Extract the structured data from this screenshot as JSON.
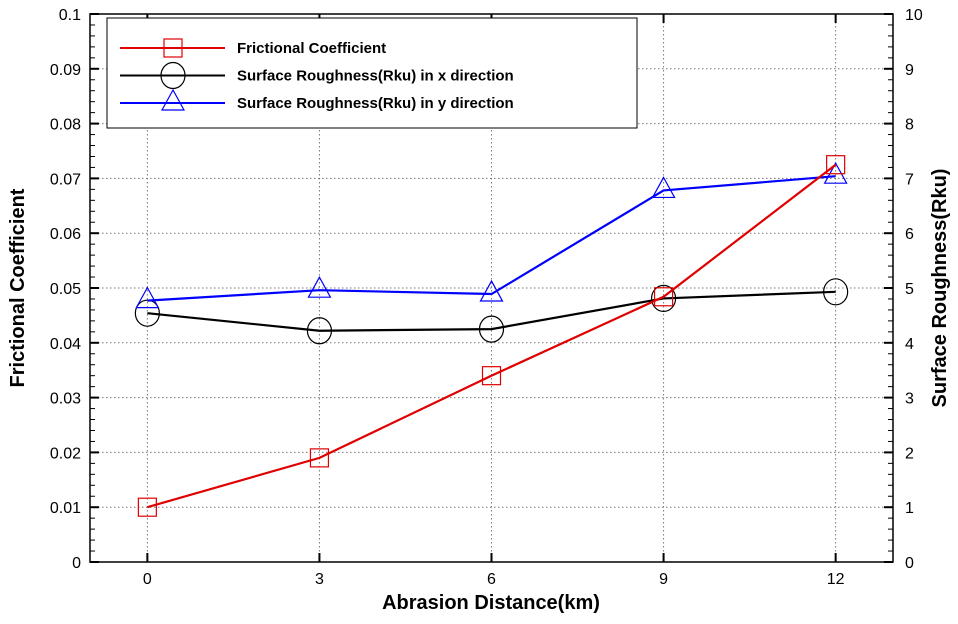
{
  "chart_data": {
    "type": "line",
    "xlabel": "Abrasion Distance(km)",
    "ylabel": "Frictional Coefficient",
    "y2label": "Surface Roughness(Rku)",
    "x": [
      0,
      3,
      6,
      9,
      12
    ],
    "xlim": [
      -1,
      13
    ],
    "ylim": [
      0,
      0.1
    ],
    "y2lim": [
      0,
      10
    ],
    "xticks": [
      "0",
      "3",
      "6",
      "9",
      "12"
    ],
    "yticks": [
      "0",
      "0.01",
      "0.02",
      "0.03",
      "0.04",
      "0.05",
      "0.06",
      "0.07",
      "0.08",
      "0.09",
      "0.1"
    ],
    "y2ticks": [
      "0",
      "1",
      "2",
      "3",
      "4",
      "5",
      "6",
      "7",
      "8",
      "9",
      "10"
    ],
    "grid": true,
    "legend_position": "top-left",
    "series": [
      {
        "name": "Frictional Coefficient",
        "axis": "left",
        "color": "#e00000",
        "marker": "square",
        "values": [
          0.01,
          0.019,
          0.034,
          0.0484,
          0.0725
        ]
      },
      {
        "name": "Surface Roughness(Rku) in x direction",
        "axis": "right",
        "color": "#000000",
        "marker": "circle",
        "values": [
          4.54,
          4.22,
          4.25,
          4.81,
          4.93
        ]
      },
      {
        "name": "Surface Roughness(Rku) in y direction",
        "axis": "right",
        "color": "#0000ff",
        "marker": "triangle",
        "values": [
          4.77,
          4.96,
          4.89,
          6.78,
          7.04
        ]
      }
    ]
  }
}
